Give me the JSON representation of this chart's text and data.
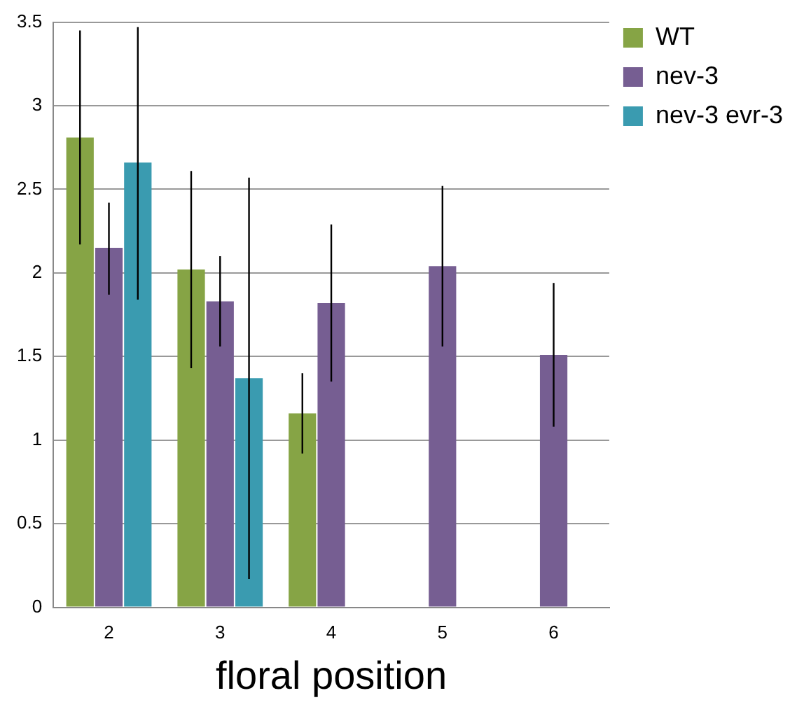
{
  "chart_data": {
    "type": "bar",
    "xlabel": "floral position",
    "categories": [
      "2",
      "3",
      "4",
      "5",
      "6"
    ],
    "series": [
      {
        "name": "WT",
        "color": "#86a445",
        "values": [
          2.81,
          2.02,
          1.16,
          null,
          null
        ],
        "errors": [
          [
            2.17,
            3.45
          ],
          [
            1.43,
            2.61
          ],
          [
            0.92,
            1.4
          ],
          null,
          null
        ]
      },
      {
        "name": "nev-3",
        "color": "#765e92",
        "values": [
          2.15,
          1.83,
          1.82,
          2.04,
          1.51
        ],
        "errors": [
          [
            1.87,
            2.42
          ],
          [
            1.56,
            2.1
          ],
          [
            1.35,
            2.29
          ],
          [
            1.56,
            2.52
          ],
          [
            1.08,
            1.94
          ]
        ]
      },
      {
        "name": "nev-3 evr-3",
        "color": "#3a9bb0",
        "values": [
          2.66,
          1.37,
          null,
          null,
          null
        ],
        "errors": [
          [
            1.84,
            3.47
          ],
          [
            0.17,
            2.57
          ],
          null,
          null,
          null
        ]
      }
    ],
    "ylim": [
      0,
      3.5
    ],
    "yticks": [
      0,
      0.5,
      1,
      1.5,
      2,
      2.5,
      3,
      3.5
    ],
    "grid": "y",
    "legend": "top right"
  }
}
